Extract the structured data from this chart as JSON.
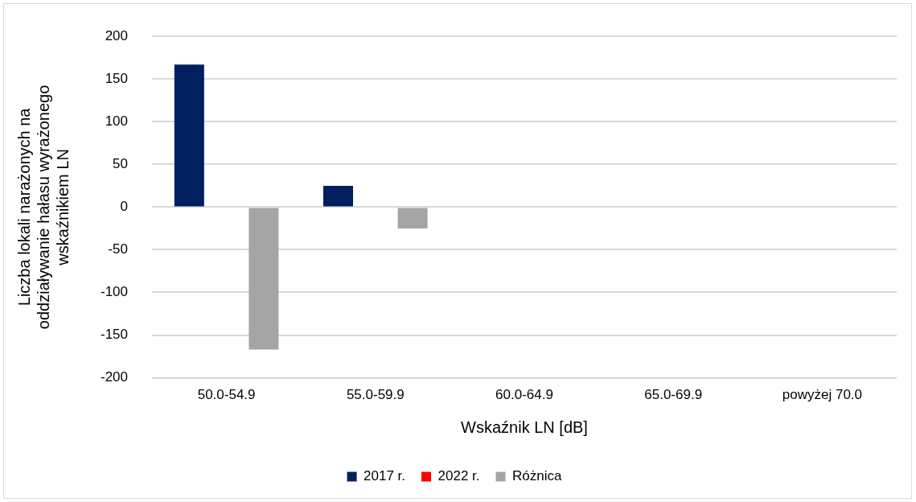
{
  "chart_data": {
    "type": "bar",
    "categories": [
      "50.0-54.9",
      "55.0-59.9",
      "60.0-64.9",
      "65.0-69.9",
      "powyżej 70.0"
    ],
    "series": [
      {
        "name": "2017 r.",
        "color": "#002060",
        "values": [
          167,
          25,
          0,
          0,
          0
        ]
      },
      {
        "name": "2022 r.",
        "color": "#ff0000",
        "values": [
          0,
          0,
          0,
          0,
          0
        ]
      },
      {
        "name": "Różnica",
        "color": "#a5a5a5",
        "values": [
          -167,
          -25,
          0,
          0,
          0
        ]
      }
    ],
    "xlabel": "Wskaźnik LN [dB]",
    "ylabel": "Liczba lokali narażonych na oddziaływanie hałasu wyrażonego wskaźnikiem LN",
    "ylim": [
      -200,
      200
    ],
    "yticks": [
      -200,
      -150,
      -100,
      -50,
      0,
      50,
      100,
      150,
      200
    ],
    "grid": "y",
    "legend": "bottom"
  }
}
